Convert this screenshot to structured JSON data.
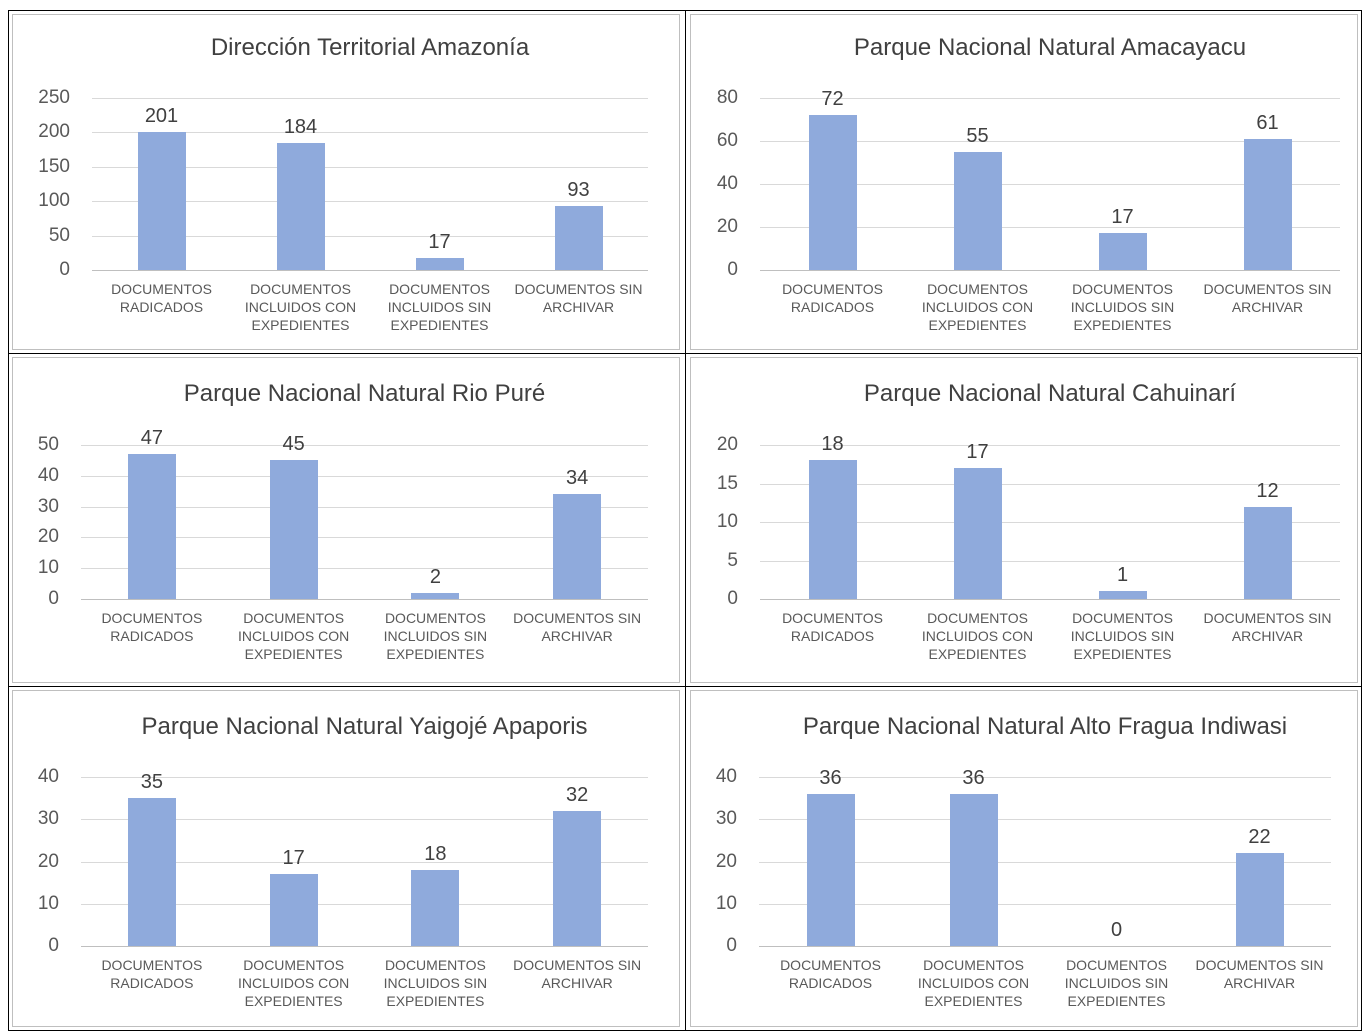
{
  "chart_data": [
    {
      "type": "bar",
      "title": "Dirección Territorial Amazonía",
      "categories": [
        "DOCUMENTOS RADICADOS",
        "DOCUMENTOS INCLUIDOS CON EXPEDIENTES",
        "DOCUMENTOS INCLUIDOS SIN EXPEDIENTES",
        "DOCUMENTOS SIN ARCHIVAR"
      ],
      "values": [
        201,
        184,
        17,
        93
      ],
      "color": "#8faadc",
      "ylim": [
        0,
        250
      ],
      "yticks": [
        0,
        50,
        100,
        150,
        200,
        250
      ],
      "grid": true
    },
    {
      "type": "bar",
      "title": "Parque Nacional Natural Amacayacu",
      "categories": [
        "DOCUMENTOS RADICADOS",
        "DOCUMENTOS INCLUIDOS CON EXPEDIENTES",
        "DOCUMENTOS INCLUIDOS SIN EXPEDIENTES",
        "DOCUMENTOS SIN ARCHIVAR"
      ],
      "values": [
        72,
        55,
        17,
        61
      ],
      "color": "#8faadc",
      "ylim": [
        0,
        80
      ],
      "yticks": [
        0,
        20,
        40,
        60,
        80
      ],
      "grid": true
    },
    {
      "type": "bar",
      "title": "Parque Nacional Natural Rio Puré",
      "categories": [
        "DOCUMENTOS RADICADOS",
        "DOCUMENTOS INCLUIDOS CON EXPEDIENTES",
        "DOCUMENTOS INCLUIDOS SIN EXPEDIENTES",
        "DOCUMENTOS SIN ARCHIVAR"
      ],
      "values": [
        47,
        45,
        2,
        34
      ],
      "color": "#8faadc",
      "ylim": [
        0,
        50
      ],
      "yticks": [
        0,
        10,
        20,
        30,
        40,
        50
      ],
      "grid": true
    },
    {
      "type": "bar",
      "title": "Parque Nacional Natural Cahuinarí",
      "categories": [
        "DOCUMENTOS RADICADOS",
        "DOCUMENTOS INCLUIDOS CON EXPEDIENTES",
        "DOCUMENTOS INCLUIDOS SIN EXPEDIENTES",
        "DOCUMENTOS SIN ARCHIVAR"
      ],
      "values": [
        18,
        17,
        1,
        12
      ],
      "color": "#8faadc",
      "ylim": [
        0,
        20
      ],
      "yticks": [
        0,
        5,
        10,
        15,
        20
      ],
      "grid": true
    },
    {
      "type": "bar",
      "title": "Parque Nacional Natural Yaigojé Apaporis",
      "categories": [
        "DOCUMENTOS RADICADOS",
        "DOCUMENTOS INCLUIDOS CON EXPEDIENTES",
        "DOCUMENTOS INCLUIDOS SIN EXPEDIENTES",
        "DOCUMENTOS SIN ARCHIVAR"
      ],
      "values": [
        35,
        17,
        18,
        32
      ],
      "color": "#8faadc",
      "ylim": [
        0,
        40
      ],
      "yticks": [
        0,
        10,
        20,
        30,
        40
      ],
      "grid": true
    },
    {
      "type": "bar",
      "title": "Parque Nacional Natural Alto Fragua Indiwasi",
      "categories": [
        "DOCUMENTOS RADICADOS",
        "DOCUMENTOS INCLUIDOS CON EXPEDIENTES",
        "DOCUMENTOS INCLUIDOS SIN EXPEDIENTES",
        "DOCUMENTOS SIN ARCHIVAR"
      ],
      "values": [
        36,
        36,
        0,
        22
      ],
      "color": "#8faadc",
      "ylim": [
        0,
        40
      ],
      "yticks": [
        0,
        10,
        20,
        30,
        40
      ],
      "grid": true
    }
  ]
}
